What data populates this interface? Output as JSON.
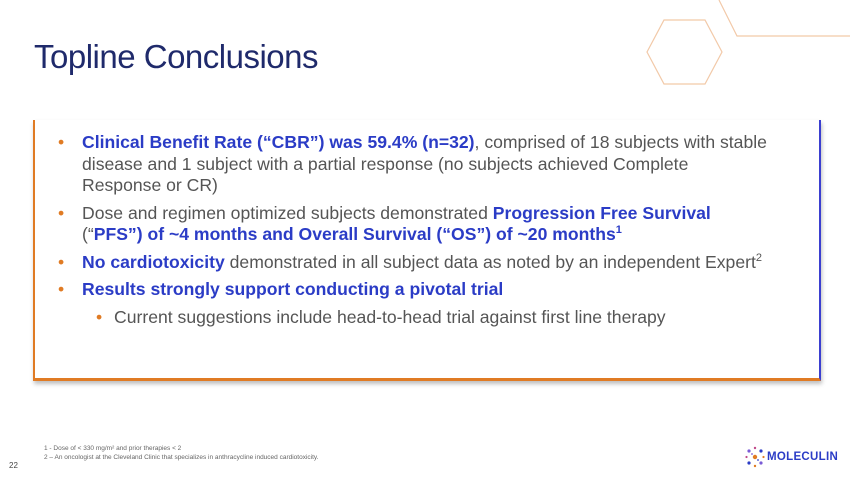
{
  "title": "Topline Conclusions",
  "bullets": [
    {
      "bold": "Clinical Benefit Rate (“CBR”) was 59.4% (n=32)",
      "text": ", comprised of 18 subjects with stable disease and 1 subject with a partial response (no subjects achieved Complete Response or CR)"
    },
    {
      "text_before": "Dose and regimen optimized subjects demonstrated ",
      "bold": "Progression Free Survival",
      "text_mid": " (“",
      "bold2": "PFS”) of ~4 months and Overall Survival (“OS”) of ~20 months",
      "sup": "1"
    },
    {
      "bold": "No cardiotoxicity",
      "text": " demonstrated in all subject data as noted by an independent Expert",
      "sup": "2"
    },
    {
      "bold": "Results strongly support conducting a pivotal trial",
      "sub": "Current suggestions include head-to-head trial against first line therapy"
    }
  ],
  "bullet_char": "•",
  "footnotes": {
    "line1": "1 - Dose of < 330 mg/m² and prior therapies < 2",
    "line2": "2 – An oncologist at the Cleveland Clinic that specializes in anthracycline induced cardiotoxicity."
  },
  "page_number": "22",
  "logo": {
    "text": "MOLECULIN"
  },
  "colors": {
    "title": "#1f2a6b",
    "accent_orange": "#e07b24",
    "highlight_blue": "#2b3cc6"
  }
}
